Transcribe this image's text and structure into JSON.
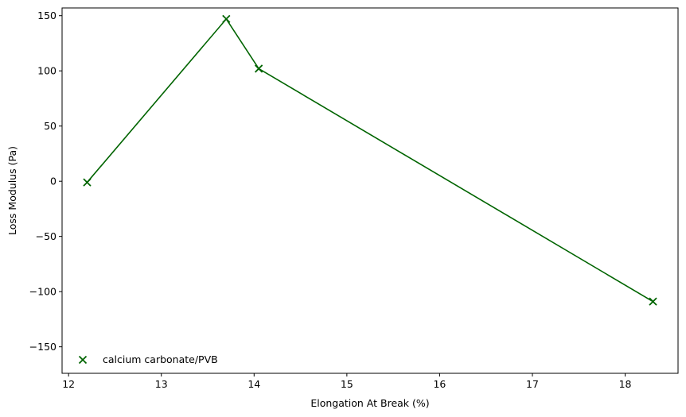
{
  "chart_data": {
    "type": "line",
    "title": "",
    "xlabel": "Elongation At Break (%)",
    "ylabel": "Loss Modulus (Pa)",
    "xlim": [
      11.93,
      18.57
    ],
    "ylim": [
      -174,
      157
    ],
    "xticks": [
      12,
      13,
      14,
      15,
      16,
      17,
      18
    ],
    "yticks": [
      -150,
      -100,
      -50,
      0,
      50,
      100,
      150
    ],
    "grid": false,
    "legend_position": "lower-left",
    "series": [
      {
        "name": "calcium carbonate/PVB",
        "color": "#006400",
        "marker": "x",
        "x": [
          12.2,
          13.7,
          14.05,
          18.3
        ],
        "y": [
          -1,
          147,
          102,
          -109
        ]
      }
    ]
  }
}
